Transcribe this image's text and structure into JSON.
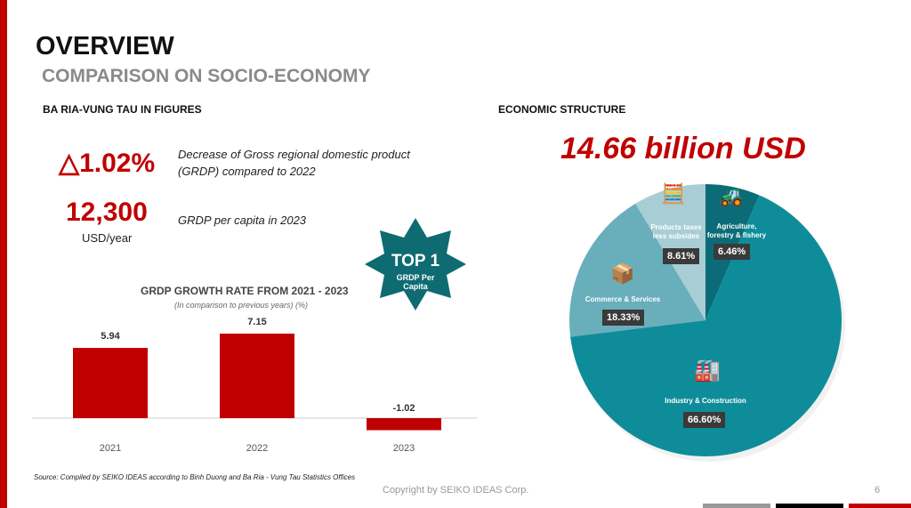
{
  "header": {
    "title": "OVERVIEW",
    "subtitle": "COMPARISON ON SOCIO-ECONOMY"
  },
  "left": {
    "section_title": "BA RIA-VUNG TAU IN FIGURES",
    "stat1": {
      "value": "△1.02%",
      "desc_line1": "Decrease of Gross regional domestic product",
      "desc_line2": "(GRDP) compared to 2022"
    },
    "stat2": {
      "value": "12,300",
      "unit": "USD/year",
      "desc": "GRDP per capita in 2023"
    },
    "badge": {
      "title": "TOP 1",
      "line1": "GRDP Per",
      "line2": "Capita"
    }
  },
  "right": {
    "section_title": "ECONOMIC STRUCTURE",
    "total": "14.66 billion USD"
  },
  "chart_data": [
    {
      "type": "bar",
      "title": "GRDP GROWTH RATE FROM 2021 - 2023",
      "subtitle": "(In comparison to previous years) (%)",
      "categories": [
        "2021",
        "2022",
        "2023"
      ],
      "values": [
        5.94,
        7.15,
        -1.02
      ],
      "labels": [
        "5.94",
        "7.15",
        "-1.02"
      ],
      "color": "#c00000",
      "ylim": [
        -1.5,
        8
      ]
    },
    {
      "type": "pie",
      "slices": [
        {
          "label": "Agriculture, forestry & fishery",
          "value": 6.46,
          "text": "6.46%",
          "color": "#0b6c78"
        },
        {
          "label": "Industry & Construction",
          "value": 66.6,
          "text": "66.60%",
          "color": "#0f8c99"
        },
        {
          "label": "Commerce & Services",
          "value": 18.33,
          "text": "18.33%",
          "color": "#69aebb"
        },
        {
          "label": "Products taxes less subsides",
          "value": 8.61,
          "text": "8.61%",
          "color": "#a9cdd5"
        }
      ]
    }
  ],
  "footer": {
    "source": "Source: Compiled by SEIKO IDEAS according to Binh Duong and Ba Ria - Vung Tau Statistics Offices",
    "copyright": "Copyright by SEIKO IDEAS Corp.",
    "page": "6"
  }
}
